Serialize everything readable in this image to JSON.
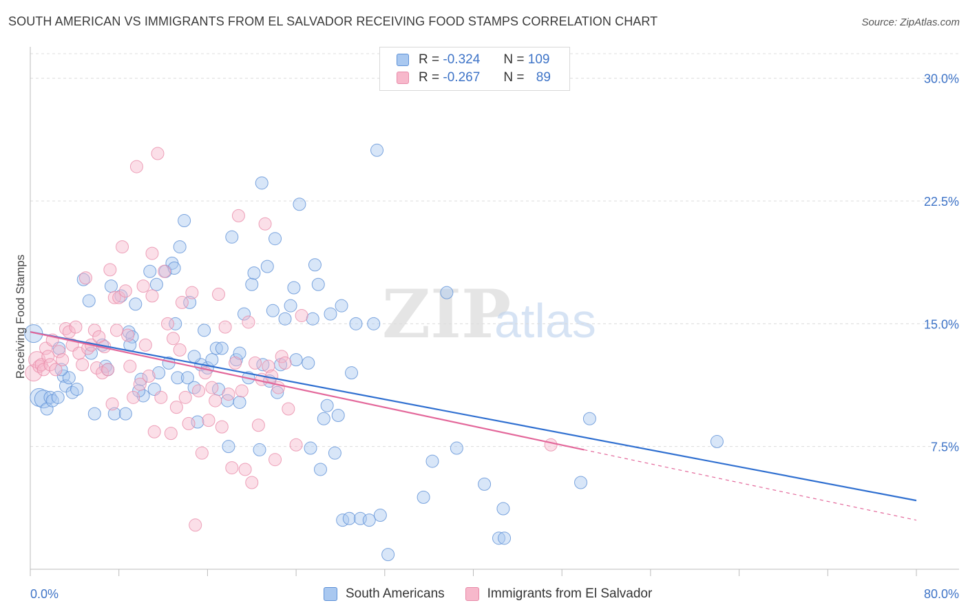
{
  "header": {
    "title": "SOUTH AMERICAN VS IMMIGRANTS FROM EL SALVADOR RECEIVING FOOD STAMPS CORRELATION CHART",
    "source": "Source: ZipAtlas.com"
  },
  "legend": {
    "rows": [
      {
        "r_label": "R =",
        "r_value": "-0.324",
        "n_label": "N =",
        "n_value": "109"
      },
      {
        "r_label": "R =",
        "r_value": "-0.267",
        "n_label": "N =",
        "n_value": "89"
      }
    ]
  },
  "colors": {
    "blue_fill": "#a9c8f0",
    "blue_stroke": "#5b8fd6",
    "blue_line": "#2f6fd0",
    "pink_fill": "#f7b8cb",
    "pink_stroke": "#e889a8",
    "pink_line": "#e3679a",
    "accent_text": "#3d73c7"
  },
  "watermark": {
    "bold": "ZIP",
    "light": "atlas"
  },
  "chart_data": {
    "type": "scatter",
    "title": "SOUTH AMERICAN VS IMMIGRANTS FROM EL SALVADOR RECEIVING FOOD STAMPS CORRELATION CHART",
    "xlabel": "",
    "ylabel": "Receiving Food Stamps",
    "xlim": [
      0,
      80
    ],
    "ylim": [
      0,
      31.5
    ],
    "x_tick_labels": [
      "0.0%",
      "80.0%"
    ],
    "y_ticks": [
      7.5,
      15.0,
      22.5,
      30.0
    ],
    "y_tick_labels": [
      "7.5%",
      "15.0%",
      "22.5%",
      "30.0%"
    ],
    "grid": "horizontal dashed",
    "legend_position": "top-center",
    "series": [
      {
        "name": "South Americans",
        "r": -0.324,
        "n": 109,
        "trend": {
          "x": [
            0,
            80
          ],
          "y": [
            14.5,
            4.2
          ],
          "style": "solid"
        },
        "points": [
          [
            0.3,
            14.4
          ],
          [
            0.8,
            10.5
          ],
          [
            1.2,
            10.4
          ],
          [
            1.5,
            9.8
          ],
          [
            1.8,
            10.5
          ],
          [
            2.0,
            10.3
          ],
          [
            2.5,
            10.5
          ],
          [
            3.0,
            11.8
          ],
          [
            3.2,
            11.2
          ],
          [
            3.5,
            11.7
          ],
          [
            3.8,
            10.8
          ],
          [
            4.2,
            11.0
          ],
          [
            2.8,
            12.2
          ],
          [
            4.8,
            17.7
          ],
          [
            5.5,
            13.2
          ],
          [
            5.8,
            9.5
          ],
          [
            6.5,
            13.7
          ],
          [
            6.8,
            12.4
          ],
          [
            7.0,
            12.2
          ],
          [
            7.3,
            17.3
          ],
          [
            7.6,
            9.5
          ],
          [
            8.2,
            16.7
          ],
          [
            8.6,
            9.5
          ],
          [
            8.9,
            14.5
          ],
          [
            9.2,
            14.2
          ],
          [
            9.0,
            13.7
          ],
          [
            9.5,
            16.2
          ],
          [
            10.0,
            11.6
          ],
          [
            10.2,
            10.6
          ],
          [
            10.8,
            18.2
          ],
          [
            11.2,
            11.0
          ],
          [
            11.4,
            17.4
          ],
          [
            11.6,
            12.0
          ],
          [
            12.2,
            18.2
          ],
          [
            12.8,
            18.7
          ],
          [
            12.5,
            12.6
          ],
          [
            13.0,
            18.4
          ],
          [
            13.3,
            11.7
          ],
          [
            13.1,
            15.0
          ],
          [
            13.5,
            19.7
          ],
          [
            13.9,
            21.3
          ],
          [
            14.2,
            11.7
          ],
          [
            14.4,
            16.3
          ],
          [
            14.8,
            11.1
          ],
          [
            15.1,
            9.0
          ],
          [
            15.4,
            12.5
          ],
          [
            15.7,
            14.6
          ],
          [
            16.0,
            12.3
          ],
          [
            16.4,
            12.8
          ],
          [
            16.8,
            13.5
          ],
          [
            17.0,
            11.0
          ],
          [
            17.3,
            13.5
          ],
          [
            17.8,
            10.3
          ],
          [
            17.9,
            7.5
          ],
          [
            18.2,
            20.3
          ],
          [
            18.6,
            12.8
          ],
          [
            18.9,
            13.2
          ],
          [
            19.3,
            15.6
          ],
          [
            19.7,
            11.7
          ],
          [
            20.0,
            17.4
          ],
          [
            20.2,
            18.1
          ],
          [
            20.7,
            7.3
          ],
          [
            20.9,
            23.6
          ],
          [
            21.0,
            12.5
          ],
          [
            21.4,
            18.5
          ],
          [
            21.6,
            11.5
          ],
          [
            21.9,
            15.8
          ],
          [
            22.1,
            20.2
          ],
          [
            22.3,
            10.8
          ],
          [
            22.6,
            12.5
          ],
          [
            23.0,
            15.3
          ],
          [
            23.5,
            16.1
          ],
          [
            23.8,
            17.2
          ],
          [
            24.0,
            12.8
          ],
          [
            24.3,
            22.3
          ],
          [
            25.1,
            12.6
          ],
          [
            25.3,
            7.4
          ],
          [
            25.7,
            18.6
          ],
          [
            26.0,
            17.4
          ],
          [
            26.2,
            6.1
          ],
          [
            26.5,
            9.2
          ],
          [
            26.8,
            10.0
          ],
          [
            27.1,
            15.6
          ],
          [
            27.5,
            7.1
          ],
          [
            27.8,
            9.4
          ],
          [
            28.1,
            16.1
          ],
          [
            28.2,
            3.0
          ],
          [
            28.8,
            3.1
          ],
          [
            29.0,
            12.0
          ],
          [
            29.4,
            15.0
          ],
          [
            29.8,
            3.1
          ],
          [
            30.6,
            3.0
          ],
          [
            31.3,
            25.6
          ],
          [
            31.6,
            3.3
          ],
          [
            32.3,
            0.9
          ],
          [
            35.5,
            4.4
          ],
          [
            36.3,
            6.6
          ],
          [
            37.6,
            16.9
          ],
          [
            38.5,
            7.4
          ],
          [
            41.0,
            5.2
          ],
          [
            42.3,
            1.9
          ],
          [
            42.8,
            1.9
          ],
          [
            42.7,
            3.7
          ],
          [
            49.7,
            5.3
          ],
          [
            50.5,
            9.2
          ],
          [
            62.0,
            7.8
          ],
          [
            31.0,
            15.0
          ],
          [
            25.5,
            15.3
          ],
          [
            14.8,
            13.0
          ],
          [
            18.9,
            10.2
          ],
          [
            9.8,
            10.9
          ],
          [
            5.3,
            16.4
          ],
          [
            2.6,
            13.5
          ]
        ]
      },
      {
        "name": "Immigrants from El Salvador",
        "r": -0.267,
        "n": 89,
        "trend": {
          "x": [
            0,
            50
          ],
          "y": [
            14.5,
            7.3
          ],
          "style": "solid",
          "dash_extension": {
            "x": [
              50,
              80
            ],
            "y": [
              7.3,
              3.0
            ]
          }
        },
        "points": [
          [
            0.3,
            12.0
          ],
          [
            0.6,
            12.8
          ],
          [
            0.8,
            12.4
          ],
          [
            1.0,
            12.5
          ],
          [
            1.2,
            12.2
          ],
          [
            1.4,
            13.5
          ],
          [
            1.6,
            13.0
          ],
          [
            1.8,
            12.5
          ],
          [
            2.0,
            14.0
          ],
          [
            2.3,
            12.2
          ],
          [
            2.6,
            13.3
          ],
          [
            2.9,
            12.8
          ],
          [
            3.2,
            14.7
          ],
          [
            3.5,
            14.5
          ],
          [
            3.8,
            13.7
          ],
          [
            4.1,
            14.8
          ],
          [
            4.4,
            13.2
          ],
          [
            4.7,
            12.5
          ],
          [
            5.0,
            17.8
          ],
          [
            5.2,
            13.5
          ],
          [
            5.5,
            13.7
          ],
          [
            5.8,
            14.6
          ],
          [
            6.0,
            12.3
          ],
          [
            6.2,
            14.2
          ],
          [
            6.5,
            12.0
          ],
          [
            6.7,
            13.6
          ],
          [
            7.0,
            12.2
          ],
          [
            7.2,
            18.3
          ],
          [
            7.4,
            10.1
          ],
          [
            7.6,
            16.6
          ],
          [
            7.8,
            14.6
          ],
          [
            8.0,
            16.6
          ],
          [
            8.3,
            19.7
          ],
          [
            8.6,
            17.0
          ],
          [
            8.8,
            14.3
          ],
          [
            9.0,
            12.4
          ],
          [
            9.3,
            10.5
          ],
          [
            9.6,
            24.6
          ],
          [
            9.9,
            11.3
          ],
          [
            10.2,
            17.3
          ],
          [
            10.4,
            13.7
          ],
          [
            10.7,
            11.8
          ],
          [
            11.0,
            16.7
          ],
          [
            11.2,
            8.4
          ],
          [
            11.5,
            25.4
          ],
          [
            11.8,
            10.5
          ],
          [
            12.1,
            18.2
          ],
          [
            12.4,
            15.0
          ],
          [
            12.7,
            8.3
          ],
          [
            12.9,
            14.1
          ],
          [
            13.2,
            9.9
          ],
          [
            13.5,
            13.4
          ],
          [
            13.7,
            16.3
          ],
          [
            14.0,
            10.5
          ],
          [
            14.3,
            8.9
          ],
          [
            14.6,
            16.9
          ],
          [
            14.9,
            2.7
          ],
          [
            15.2,
            10.9
          ],
          [
            15.5,
            7.1
          ],
          [
            15.8,
            12.0
          ],
          [
            16.1,
            9.1
          ],
          [
            16.4,
            11.1
          ],
          [
            16.7,
            10.3
          ],
          [
            17.0,
            16.8
          ],
          [
            17.3,
            8.7
          ],
          [
            17.6,
            14.8
          ],
          [
            17.9,
            10.7
          ],
          [
            18.2,
            6.2
          ],
          [
            18.5,
            12.6
          ],
          [
            18.8,
            21.6
          ],
          [
            19.1,
            10.9
          ],
          [
            19.4,
            6.1
          ],
          [
            19.7,
            15.1
          ],
          [
            20.0,
            5.3
          ],
          [
            20.3,
            12.6
          ],
          [
            20.6,
            8.8
          ],
          [
            20.9,
            11.6
          ],
          [
            21.2,
            21.1
          ],
          [
            21.5,
            12.4
          ],
          [
            21.8,
            11.8
          ],
          [
            22.1,
            6.7
          ],
          [
            22.4,
            11.1
          ],
          [
            22.7,
            13.0
          ],
          [
            23.0,
            12.6
          ],
          [
            23.3,
            9.8
          ],
          [
            24.0,
            7.6
          ],
          [
            24.5,
            15.5
          ],
          [
            11.0,
            19.3
          ],
          [
            47.0,
            7.6
          ]
        ]
      }
    ]
  },
  "bottom_legend": [
    {
      "label": "South Americans"
    },
    {
      "label": "Immigrants from El Salvador"
    }
  ]
}
